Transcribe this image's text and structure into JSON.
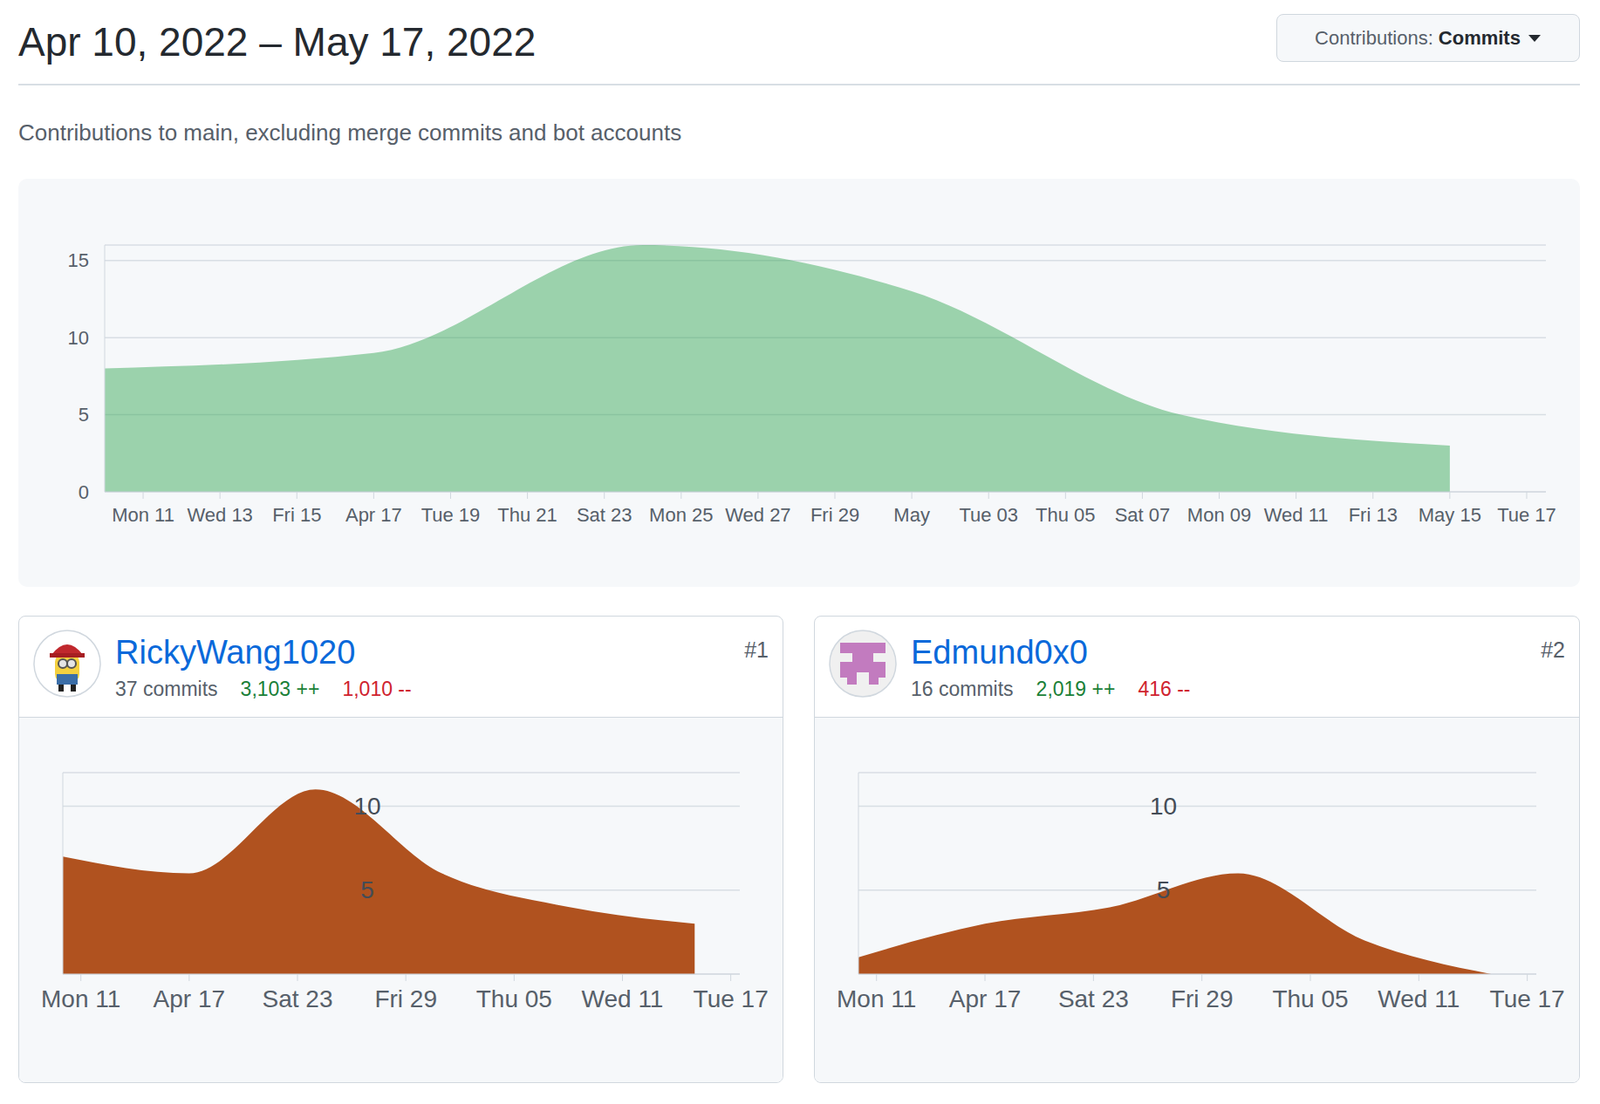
{
  "page": {
    "title": "Apr 10, 2022 – May 17, 2022",
    "filter": {
      "label": "Contributions:",
      "value": "Commits"
    },
    "subtitle": "Contributions to main, excluding merge commits and bot accounts"
  },
  "chart_data": [
    {
      "type": "area",
      "x": [
        0,
        7,
        14,
        21,
        28,
        35
      ],
      "values": [
        8,
        9,
        16,
        13,
        5,
        3
      ],
      "color": "#2da44e",
      "xlim": [
        0,
        37.5
      ],
      "xticks": [
        {
          "value": 1,
          "label": "Mon 11"
        },
        {
          "value": 3,
          "label": "Wed 13"
        },
        {
          "value": 5,
          "label": "Fri 15"
        },
        {
          "value": 7,
          "label": "Apr 17"
        },
        {
          "value": 9,
          "label": "Tue 19"
        },
        {
          "value": 11,
          "label": "Thu 21"
        },
        {
          "value": 13,
          "label": "Sat 23"
        },
        {
          "value": 15,
          "label": "Mon 25"
        },
        {
          "value": 17,
          "label": "Wed 27"
        },
        {
          "value": 19,
          "label": "Fri 29"
        },
        {
          "value": 21,
          "label": "May"
        },
        {
          "value": 23,
          "label": "Tue 03"
        },
        {
          "value": 25,
          "label": "Thu 05"
        },
        {
          "value": 27,
          "label": "Sat 07"
        },
        {
          "value": 29,
          "label": "Mon 09"
        },
        {
          "value": 31,
          "label": "Wed 11"
        },
        {
          "value": 33,
          "label": "Fri 13"
        },
        {
          "value": 35,
          "label": "May 15"
        },
        {
          "value": 37,
          "label": "Tue 17"
        }
      ],
      "ylim": [
        0,
        16
      ],
      "yticks": [
        0,
        5,
        10,
        15
      ],
      "grid": true
    },
    {
      "type": "area",
      "contributor": {
        "name": "RickyWang1020",
        "rank": "#1",
        "commits": "37 commits",
        "additions": "3,103 ++",
        "deletions": "1,010 --"
      },
      "x": [
        0,
        7,
        14,
        21,
        28,
        35
      ],
      "values": [
        7,
        6,
        11,
        6,
        4,
        3
      ],
      "color": "#b0521f",
      "xlim": [
        0,
        37.5
      ],
      "xticks": [
        {
          "value": 1,
          "label": "Mon 11"
        },
        {
          "value": 7,
          "label": "Apr 17"
        },
        {
          "value": 13,
          "label": "Sat 23"
        },
        {
          "value": 19,
          "label": "Fri 29"
        },
        {
          "value": 25,
          "label": "Thu 05"
        },
        {
          "value": 31,
          "label": "Wed 11"
        },
        {
          "value": 37,
          "label": "Tue 17"
        }
      ],
      "ylim": [
        0,
        12
      ],
      "yticks": [
        5,
        10
      ],
      "grid": true
    },
    {
      "type": "area",
      "contributor": {
        "name": "Edmund0x0",
        "rank": "#2",
        "commits": "16 commits",
        "additions": "2,019 ++",
        "deletions": "416 --"
      },
      "x": [
        0,
        7,
        14,
        21,
        28,
        35
      ],
      "values": [
        1,
        3,
        4,
        6,
        2,
        0
      ],
      "color": "#b0521f",
      "xlim": [
        0,
        37.5
      ],
      "xticks": [
        {
          "value": 1,
          "label": "Mon 11"
        },
        {
          "value": 7,
          "label": "Apr 17"
        },
        {
          "value": 13,
          "label": "Sat 23"
        },
        {
          "value": 19,
          "label": "Fri 29"
        },
        {
          "value": 25,
          "label": "Thu 05"
        },
        {
          "value": 31,
          "label": "Wed 11"
        },
        {
          "value": 37,
          "label": "Tue 17"
        }
      ],
      "ylim": [
        0,
        12
      ],
      "yticks": [
        5,
        10
      ],
      "grid": true
    }
  ]
}
